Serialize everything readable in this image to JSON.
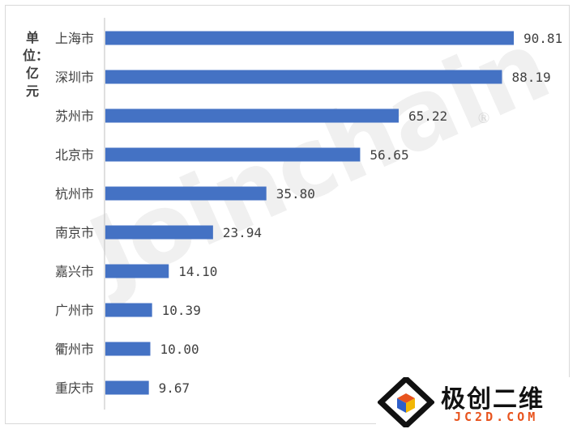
{
  "unit_label": "单位：亿元",
  "watermark": "Joinchain",
  "watermark_mark": "®",
  "logo": {
    "name": "极创二维",
    "domain": "JC2D.COM"
  },
  "colors": {
    "bar": "#4472c4",
    "axis": "#bfbfbf",
    "text": "#404040"
  },
  "chart_data": {
    "type": "bar",
    "orientation": "horizontal",
    "title": "",
    "xlabel": "",
    "ylabel": "单位：亿元",
    "categories": [
      "上海市",
      "深圳市",
      "苏州市",
      "北京市",
      "杭州市",
      "南京市",
      "嘉兴市",
      "广州市",
      "衢州市",
      "重庆市"
    ],
    "values": [
      90.81,
      88.19,
      65.22,
      56.65,
      35.8,
      23.94,
      14.1,
      10.39,
      10.0,
      9.67
    ],
    "value_labels": [
      "90.81",
      "88.19",
      "65.22",
      "56.65",
      "35.80",
      "23.94",
      "14.10",
      "10.39",
      "10.00",
      "9.67"
    ],
    "xlim": [
      0,
      100
    ],
    "grid": false,
    "legend": "none"
  }
}
